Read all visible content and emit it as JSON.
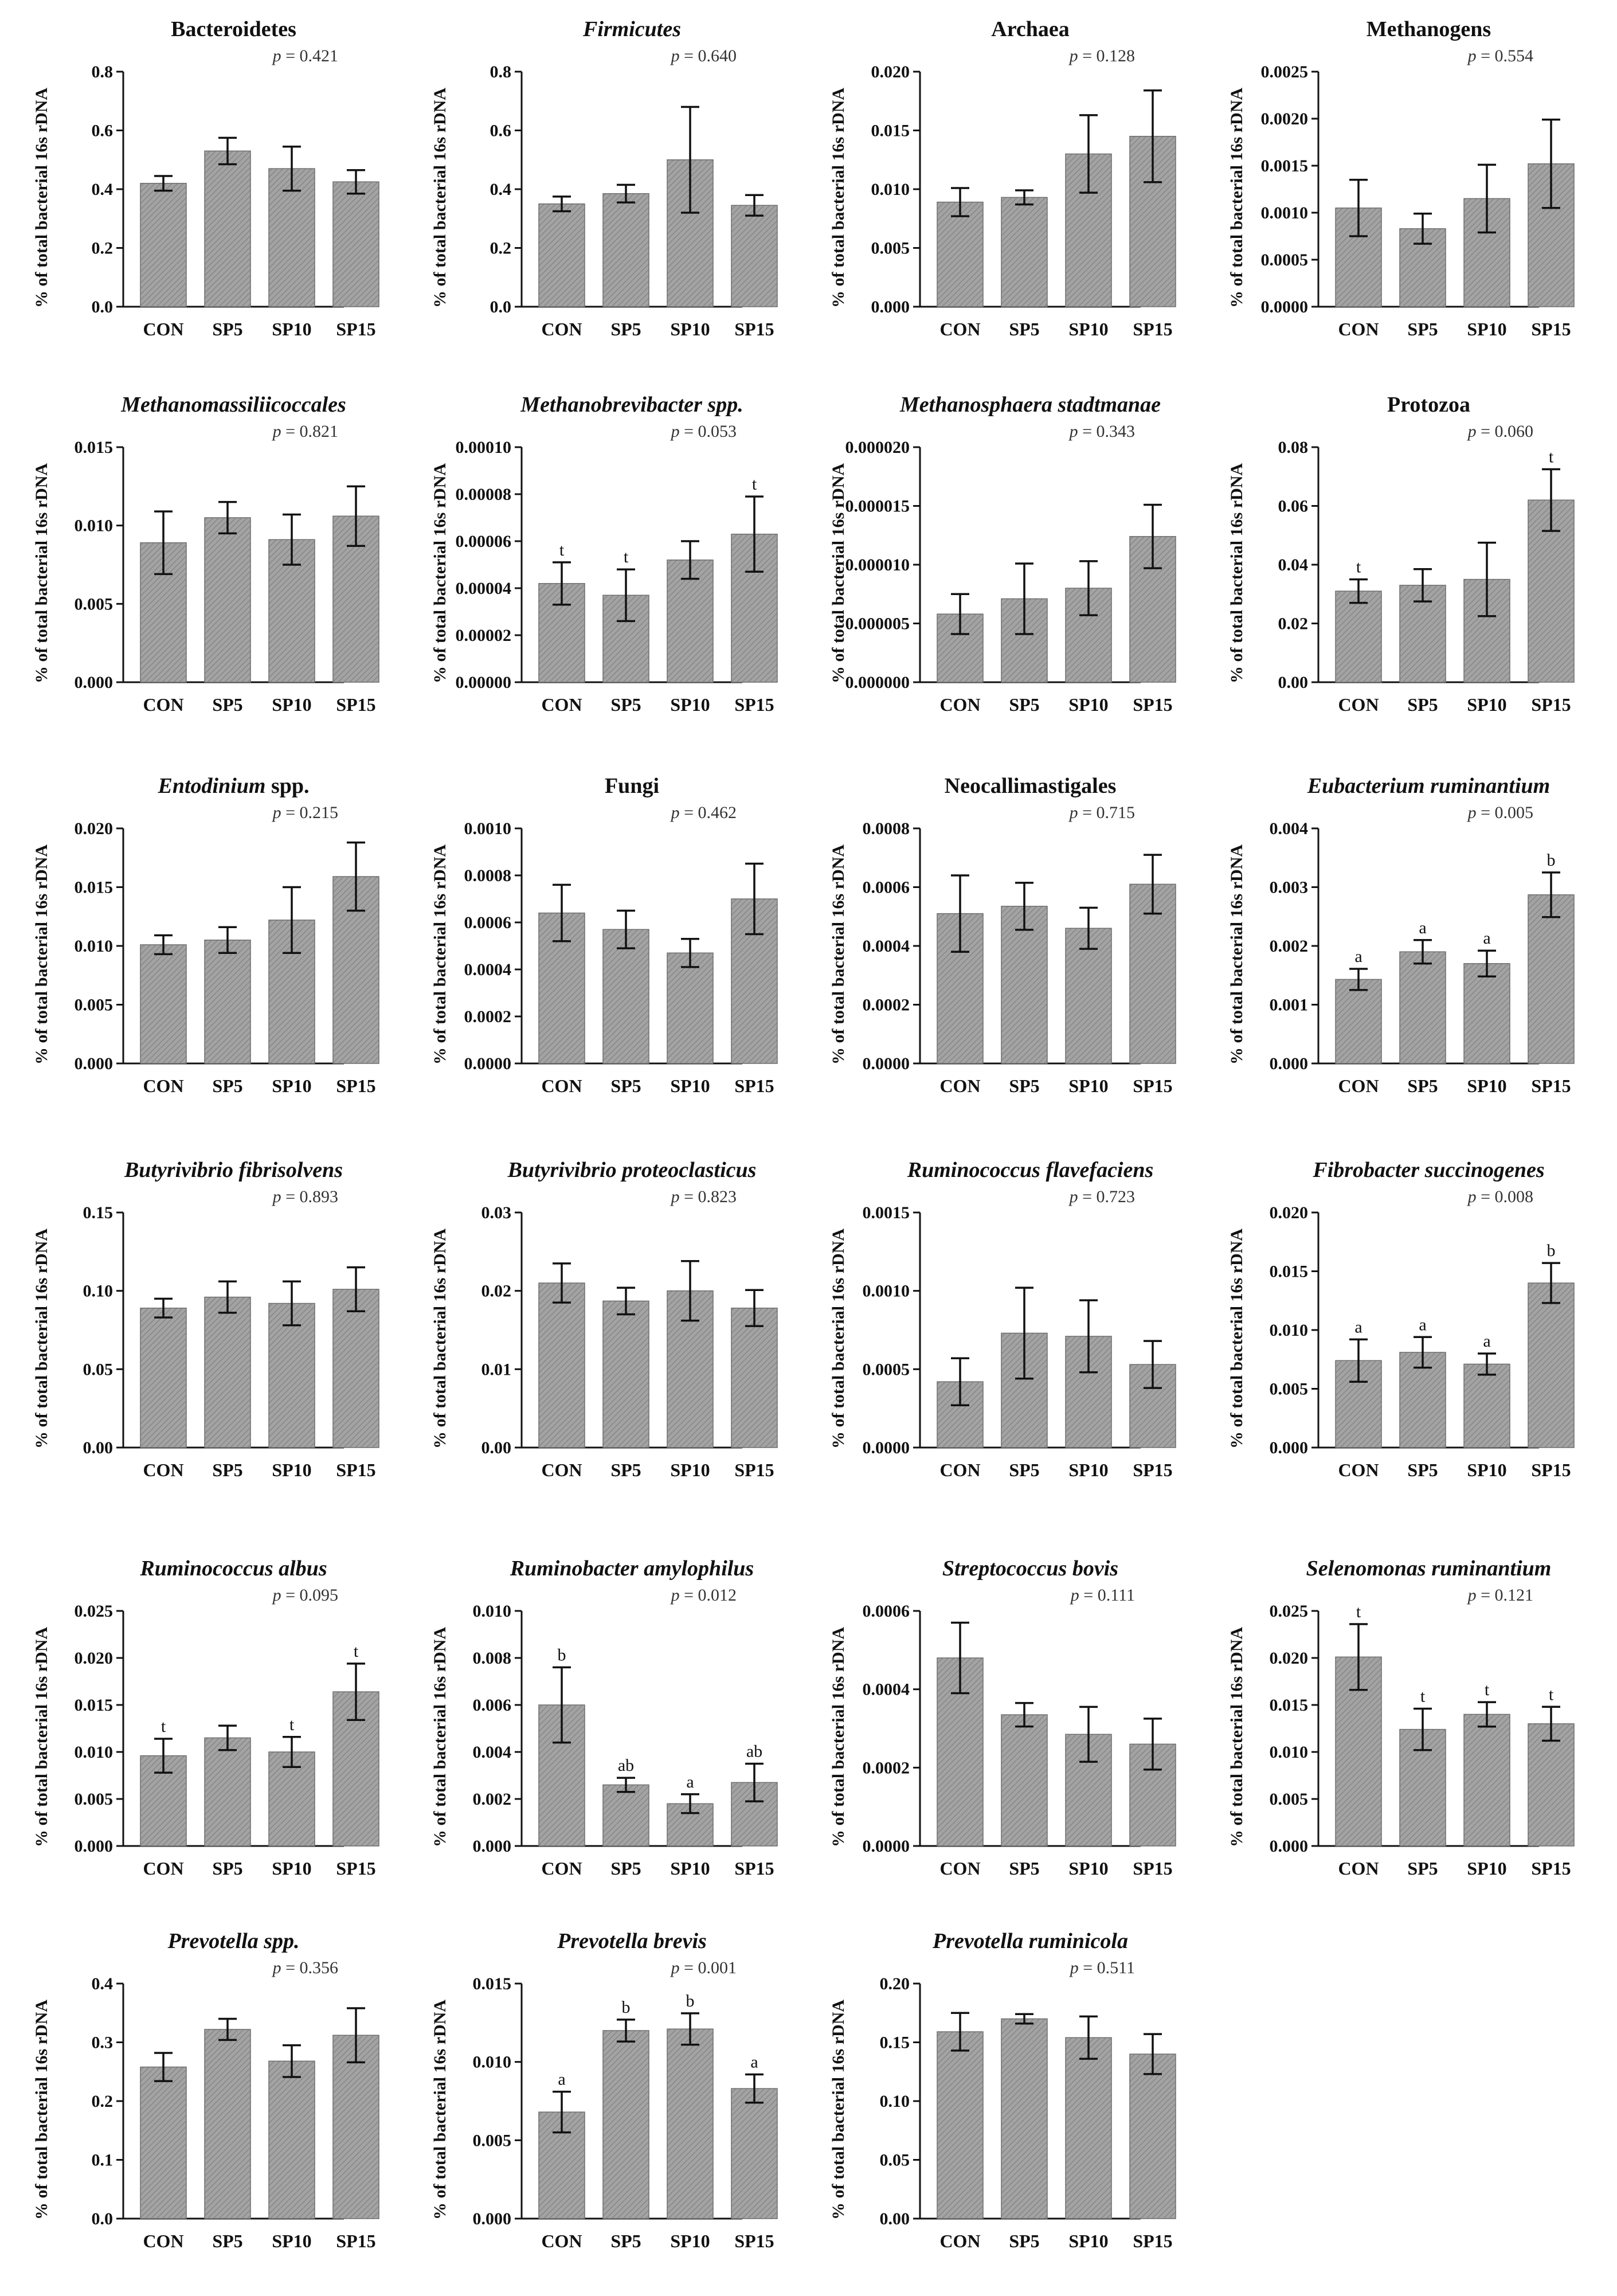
{
  "categories": [
    "CON",
    "SP5",
    "SP10",
    "SP15"
  ],
  "y_axis_label": "% of total bacterial 16s rDNA",
  "p_prefix": "p",
  "colors": {
    "bar_base": "#a3a3a3",
    "bar_stripe": "#7d7d7d",
    "axis": "#111111"
  },
  "chart_data": [
    {
      "type": "bar",
      "title": "Bacteroidetes",
      "italic": false,
      "p_value": "= 0.421",
      "ylim": [
        0,
        0.8
      ],
      "yticks": [
        "0.0",
        "0.2",
        "0.4",
        "0.6",
        "0.8"
      ],
      "values": [
        0.42,
        0.53,
        0.47,
        0.425
      ],
      "errors": [
        0.025,
        0.045,
        0.075,
        0.04
      ],
      "letters": [
        "",
        "",
        "",
        ""
      ]
    },
    {
      "type": "bar",
      "title": "Firmicutes",
      "italic": true,
      "p_value": "= 0.640",
      "ylim": [
        0,
        0.8
      ],
      "yticks": [
        "0.0",
        "0.2",
        "0.4",
        "0.6",
        "0.8"
      ],
      "values": [
        0.35,
        0.385,
        0.5,
        0.345
      ],
      "errors": [
        0.025,
        0.03,
        0.18,
        0.035
      ],
      "letters": [
        "",
        "",
        "",
        ""
      ]
    },
    {
      "type": "bar",
      "title": "Archaea",
      "italic": false,
      "p_value": "= 0.128",
      "ylim": [
        0,
        0.02
      ],
      "yticks": [
        "0.000",
        "0.005",
        "0.010",
        "0.015",
        "0.020"
      ],
      "values": [
        0.0089,
        0.0093,
        0.013,
        0.0145
      ],
      "errors": [
        0.0012,
        0.0006,
        0.0033,
        0.0039
      ],
      "letters": [
        "",
        "",
        "",
        ""
      ]
    },
    {
      "type": "bar",
      "title": "Methanogens",
      "italic": false,
      "p_value": "= 0.554",
      "ylim": [
        0,
        0.0025
      ],
      "yticks": [
        "0.0000",
        "0.0005",
        "0.0010",
        "0.0015",
        "0.0020",
        "0.0025"
      ],
      "values": [
        0.00105,
        0.00083,
        0.00115,
        0.00152
      ],
      "errors": [
        0.0003,
        0.00016,
        0.00036,
        0.00047
      ],
      "letters": [
        "",
        "",
        "",
        ""
      ]
    },
    {
      "type": "bar",
      "title": "Methanomassiliicoccales",
      "italic": true,
      "p_value": "= 0.821",
      "ylim": [
        0,
        0.015
      ],
      "yticks": [
        "0.000",
        "0.005",
        "0.010",
        "0.015"
      ],
      "values": [
        0.0089,
        0.0105,
        0.0091,
        0.0106
      ],
      "errors": [
        0.002,
        0.001,
        0.0016,
        0.0019
      ],
      "letters": [
        "",
        "",
        "",
        ""
      ]
    },
    {
      "type": "bar",
      "title": "Methanobrevibacter spp.",
      "italic": true,
      "p_value": "= 0.053",
      "ylim": [
        0,
        0.0001
      ],
      "yticks": [
        "0.00000",
        "0.00002",
        "0.00004",
        "0.00006",
        "0.00008",
        "0.00010"
      ],
      "values": [
        4.2e-05,
        3.7e-05,
        5.2e-05,
        6.3e-05
      ],
      "errors": [
        9e-06,
        1.1e-05,
        8e-06,
        1.6e-05
      ],
      "letters": [
        "t",
        "t",
        "",
        "t"
      ]
    },
    {
      "type": "bar",
      "title": "Methanosphaera stadtmanae",
      "italic": true,
      "p_value": "= 0.343",
      "ylim": [
        0,
        2e-05
      ],
      "yticks": [
        "0.000000",
        "0.000005",
        "0.000010",
        "0.000015",
        "0.000020"
      ],
      "values": [
        5.8e-06,
        7.1e-06,
        8e-06,
        1.24e-05
      ],
      "errors": [
        1.7e-06,
        3e-06,
        2.3e-06,
        2.7e-06
      ],
      "letters": [
        "",
        "",
        "",
        ""
      ]
    },
    {
      "type": "bar",
      "title": "Protozoa",
      "italic": false,
      "p_value": "= 0.060",
      "ylim": [
        0,
        0.08
      ],
      "yticks": [
        "0.00",
        "0.02",
        "0.04",
        "0.06",
        "0.08"
      ],
      "values": [
        0.031,
        0.033,
        0.035,
        0.062
      ],
      "errors": [
        0.004,
        0.0055,
        0.0125,
        0.0105
      ],
      "letters": [
        "t",
        "",
        "",
        "t"
      ]
    },
    {
      "type": "bar",
      "title": "Entodinium spp.",
      "italic": true,
      "italic_part": "Entodinium",
      "plain_part": " spp.",
      "p_value": "= 0.215",
      "ylim": [
        0,
        0.02
      ],
      "yticks": [
        "0.000",
        "0.005",
        "0.010",
        "0.015",
        "0.020"
      ],
      "values": [
        0.0101,
        0.0105,
        0.0122,
        0.0159
      ],
      "errors": [
        0.0008,
        0.0011,
        0.0028,
        0.0029
      ],
      "letters": [
        "",
        "",
        "",
        ""
      ]
    },
    {
      "type": "bar",
      "title": "Fungi",
      "italic": false,
      "p_value": "= 0.462",
      "ylim": [
        0,
        0.001
      ],
      "yticks": [
        "0.0000",
        "0.0002",
        "0.0004",
        "0.0006",
        "0.0008",
        "0.0010"
      ],
      "values": [
        0.00064,
        0.00057,
        0.00047,
        0.0007
      ],
      "errors": [
        0.00012,
        8e-05,
        6e-05,
        0.00015
      ],
      "letters": [
        "",
        "",
        "",
        ""
      ]
    },
    {
      "type": "bar",
      "title": "Neocallimastigales",
      "italic": false,
      "p_value": "= 0.715",
      "ylim": [
        0,
        0.0008
      ],
      "yticks": [
        "0.0000",
        "0.0002",
        "0.0004",
        "0.0006",
        "0.0008"
      ],
      "values": [
        0.00051,
        0.000535,
        0.00046,
        0.00061
      ],
      "errors": [
        0.00013,
        8e-05,
        7e-05,
        0.0001
      ],
      "letters": [
        "",
        "",
        "",
        ""
      ]
    },
    {
      "type": "bar",
      "title": "Eubacterium ruminantium",
      "italic": true,
      "p_value": "= 0.005",
      "ylim": [
        0,
        0.004
      ],
      "yticks": [
        "0.000",
        "0.001",
        "0.002",
        "0.003",
        "0.004"
      ],
      "values": [
        0.00143,
        0.0019,
        0.0017,
        0.00287
      ],
      "errors": [
        0.00018,
        0.0002,
        0.00022,
        0.00038
      ],
      "letters": [
        "a",
        "a",
        "a",
        "b"
      ]
    },
    {
      "type": "bar",
      "title": "Butyrivibrio fibrisolvens",
      "italic": true,
      "p_value": "= 0.893",
      "ylim": [
        0,
        0.15
      ],
      "yticks": [
        "0.00",
        "0.05",
        "0.10",
        "0.15"
      ],
      "values": [
        0.089,
        0.096,
        0.092,
        0.101
      ],
      "errors": [
        0.006,
        0.01,
        0.014,
        0.014
      ],
      "letters": [
        "",
        "",
        "",
        ""
      ]
    },
    {
      "type": "bar",
      "title": "Butyrivibrio proteoclasticus",
      "italic": true,
      "p_value": "= 0.823",
      "ylim": [
        0,
        0.03
      ],
      "yticks": [
        "0.00",
        "0.01",
        "0.02",
        "0.03"
      ],
      "values": [
        0.021,
        0.0187,
        0.02,
        0.0178
      ],
      "errors": [
        0.0025,
        0.0017,
        0.0038,
        0.0023
      ],
      "letters": [
        "",
        "",
        "",
        ""
      ]
    },
    {
      "type": "bar",
      "title": "Ruminococcus flavefaciens",
      "italic": true,
      "p_value": "= 0.723",
      "ylim": [
        0,
        0.0015
      ],
      "yticks": [
        "0.0000",
        "0.0005",
        "0.0010",
        "0.0015"
      ],
      "values": [
        0.00042,
        0.00073,
        0.00071,
        0.00053
      ],
      "errors": [
        0.00015,
        0.00029,
        0.00023,
        0.00015
      ],
      "letters": [
        "",
        "",
        "",
        ""
      ]
    },
    {
      "type": "bar",
      "title": "Fibrobacter succinogenes",
      "italic": true,
      "p_value": "= 0.008",
      "ylim": [
        0,
        0.02
      ],
      "yticks": [
        "0.000",
        "0.005",
        "0.010",
        "0.015",
        "0.020"
      ],
      "values": [
        0.0074,
        0.0081,
        0.0071,
        0.014
      ],
      "errors": [
        0.0018,
        0.0013,
        0.0009,
        0.0017
      ],
      "letters": [
        "a",
        "a",
        "a",
        "b"
      ]
    },
    {
      "type": "bar",
      "title": "Ruminococcus albus",
      "italic": true,
      "p_value": "= 0.095",
      "ylim": [
        0,
        0.025
      ],
      "yticks": [
        "0.000",
        "0.005",
        "0.010",
        "0.015",
        "0.020",
        "0.025"
      ],
      "values": [
        0.0096,
        0.0115,
        0.01,
        0.0164
      ],
      "errors": [
        0.0018,
        0.0013,
        0.0016,
        0.003
      ],
      "letters": [
        "t",
        "",
        "t",
        "t"
      ]
    },
    {
      "type": "bar",
      "title": "Ruminobacter amylophilus",
      "italic": true,
      "p_value": "= 0.012",
      "ylim": [
        0,
        0.01
      ],
      "yticks": [
        "0.000",
        "0.002",
        "0.004",
        "0.006",
        "0.008",
        "0.010"
      ],
      "values": [
        0.006,
        0.0026,
        0.0018,
        0.0027
      ],
      "errors": [
        0.0016,
        0.0003,
        0.0004,
        0.0008
      ],
      "letters": [
        "b",
        "ab",
        "a",
        "ab"
      ]
    },
    {
      "type": "bar",
      "title": "Streptococcus bovis",
      "italic": true,
      "p_value": "= 0.111",
      "ylim": [
        0,
        0.0006
      ],
      "yticks": [
        "0.0000",
        "0.0002",
        "0.0004",
        "0.0006"
      ],
      "values": [
        0.00048,
        0.000335,
        0.000285,
        0.00026
      ],
      "errors": [
        9e-05,
        3e-05,
        7e-05,
        6.5e-05
      ],
      "letters": [
        "",
        "",
        "",
        ""
      ]
    },
    {
      "type": "bar",
      "title": "Selenomonas ruminantium",
      "italic": true,
      "p_value": "= 0.121",
      "ylim": [
        0,
        0.025
      ],
      "yticks": [
        "0.000",
        "0.005",
        "0.010",
        "0.015",
        "0.020",
        "0.025"
      ],
      "values": [
        0.0201,
        0.0124,
        0.014,
        0.013
      ],
      "errors": [
        0.0035,
        0.0022,
        0.0013,
        0.0018
      ],
      "letters": [
        "t",
        "t",
        "t",
        "t"
      ]
    },
    {
      "type": "bar",
      "title": "Prevotella spp.",
      "italic": true,
      "p_value": "= 0.356",
      "ylim": [
        0,
        0.4
      ],
      "yticks": [
        "0.0",
        "0.1",
        "0.2",
        "0.3",
        "0.4"
      ],
      "values": [
        0.258,
        0.322,
        0.268,
        0.312
      ],
      "errors": [
        0.024,
        0.018,
        0.027,
        0.046
      ],
      "letters": [
        "",
        "",
        "",
        ""
      ]
    },
    {
      "type": "bar",
      "title": "Prevotella brevis",
      "italic": true,
      "p_value": "= 0.001",
      "ylim": [
        0,
        0.015
      ],
      "yticks": [
        "0.000",
        "0.005",
        "0.010",
        "0.015"
      ],
      "values": [
        0.0068,
        0.012,
        0.0121,
        0.0083
      ],
      "errors": [
        0.0013,
        0.0007,
        0.001,
        0.0009
      ],
      "letters": [
        "a",
        "b",
        "b",
        "a"
      ]
    },
    {
      "type": "bar",
      "title": "Prevotella ruminicola",
      "italic": true,
      "p_value": "= 0.511",
      "ylim": [
        0,
        0.2
      ],
      "yticks": [
        "0.00",
        "0.05",
        "0.10",
        "0.15",
        "0.20"
      ],
      "values": [
        0.159,
        0.17,
        0.154,
        0.14
      ],
      "errors": [
        0.016,
        0.004,
        0.018,
        0.017
      ],
      "letters": [
        "",
        "",
        "",
        ""
      ]
    }
  ]
}
